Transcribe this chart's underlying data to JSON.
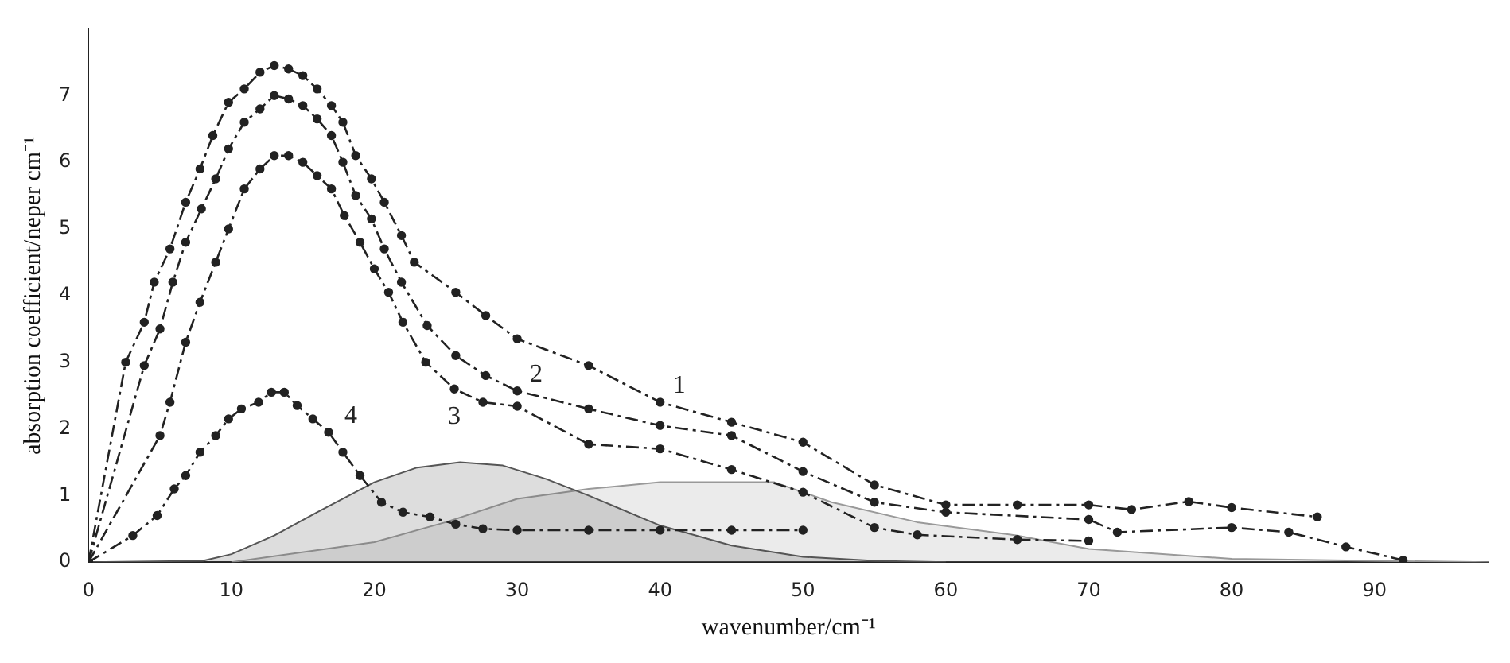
{
  "chart_data": {
    "type": "line",
    "xlabel": "wavenumber/cm⁻¹",
    "ylabel": "absorption coefficient/neper cm⁻¹",
    "xlim": [
      0,
      98
    ],
    "ylim": [
      0,
      8
    ],
    "xticks": [
      0,
      10,
      20,
      30,
      40,
      50,
      60,
      70,
      80,
      90
    ],
    "yticks": [
      0,
      1,
      2,
      3,
      4,
      5,
      6,
      7
    ],
    "grid": false,
    "legend": false,
    "marker": "circle",
    "line_style": "dashed",
    "series": [
      {
        "name": "1",
        "color": "#222222",
        "x": [
          0,
          2.6,
          3.9,
          4.6,
          5.7,
          6.8,
          7.8,
          8.7,
          9.8,
          10.9,
          12,
          13,
          14,
          15,
          16,
          17,
          17.8,
          18.7,
          19.8,
          20.7,
          21.9,
          22.8,
          25.7,
          27.8,
          30,
          35,
          40,
          45,
          50,
          55,
          60,
          65,
          70,
          73,
          77,
          80,
          86
        ],
        "values": [
          0,
          3.0,
          3.6,
          4.2,
          4.7,
          5.4,
          5.9,
          6.4,
          6.9,
          7.1,
          7.35,
          7.45,
          7.4,
          7.3,
          7.1,
          6.85,
          6.6,
          6.1,
          5.75,
          5.4,
          4.9,
          4.5,
          4.05,
          3.7,
          3.35,
          2.95,
          2.4,
          2.1,
          1.8,
          1.16,
          0.86,
          0.86,
          0.86,
          0.79,
          0.91,
          0.82,
          0.68
        ]
      },
      {
        "name": "2",
        "color": "#222222",
        "x": [
          0,
          3.9,
          5,
          5.9,
          6.8,
          7.9,
          8.9,
          9.8,
          10.9,
          12,
          13,
          14,
          15,
          16,
          17,
          17.8,
          18.7,
          19.8,
          20.7,
          21.9,
          23.7,
          25.7,
          27.8,
          30,
          35,
          40,
          45,
          50,
          55,
          60,
          70,
          72,
          80,
          84,
          88,
          92
        ],
        "values": [
          0,
          2.95,
          3.5,
          4.2,
          4.8,
          5.3,
          5.75,
          6.2,
          6.6,
          6.8,
          7.0,
          6.95,
          6.85,
          6.65,
          6.4,
          6.0,
          5.5,
          5.15,
          4.7,
          4.2,
          3.55,
          3.1,
          2.8,
          2.57,
          2.3,
          2.05,
          1.9,
          1.36,
          0.9,
          0.75,
          0.64,
          0.45,
          0.52,
          0.45,
          0.23,
          0.03
        ]
      },
      {
        "name": "3",
        "color": "#222222",
        "x": [
          0,
          5,
          5.7,
          6.8,
          7.8,
          8.9,
          9.8,
          10.9,
          12,
          13,
          14,
          15,
          16,
          17,
          17.9,
          19,
          20,
          21,
          22,
          23.6,
          25.6,
          27.6,
          30,
          35,
          40,
          45,
          50,
          55,
          58,
          65,
          70
        ],
        "values": [
          0,
          1.9,
          2.4,
          3.3,
          3.9,
          4.5,
          5.0,
          5.6,
          5.9,
          6.1,
          6.1,
          6.0,
          5.8,
          5.6,
          5.2,
          4.8,
          4.4,
          4.05,
          3.6,
          3.0,
          2.6,
          2.4,
          2.34,
          1.77,
          1.7,
          1.39,
          1.05,
          0.52,
          0.41,
          0.34,
          0.32
        ]
      },
      {
        "name": "4",
        "color": "#222222",
        "x": [
          0,
          3.1,
          4.8,
          6,
          6.8,
          7.8,
          8.9,
          9.8,
          10.7,
          11.9,
          12.8,
          13.7,
          14.6,
          15.7,
          16.8,
          17.8,
          19,
          20.5,
          22,
          23.9,
          25.7,
          27.6,
          30,
          35,
          40,
          45,
          50
        ],
        "values": [
          0,
          0.4,
          0.7,
          1.1,
          1.3,
          1.65,
          1.9,
          2.15,
          2.3,
          2.4,
          2.55,
          2.55,
          2.35,
          2.15,
          1.95,
          1.65,
          1.3,
          0.9,
          0.75,
          0.68,
          0.57,
          0.5,
          0.48,
          0.48,
          0.48,
          0.48,
          0.48
        ]
      },
      {
        "type": "area",
        "marker": "none",
        "color": "#555555",
        "x": [
          0,
          8,
          10,
          13,
          16,
          20,
          23,
          26,
          29,
          32,
          35,
          40,
          45,
          50,
          55,
          60
        ],
        "values": [
          0,
          0.02,
          0.12,
          0.4,
          0.75,
          1.2,
          1.42,
          1.5,
          1.45,
          1.25,
          1.0,
          0.55,
          0.25,
          0.08,
          0.02,
          0
        ]
      },
      {
        "type": "area",
        "marker": "none",
        "color": "#999999",
        "x": [
          10,
          20,
          25,
          30,
          35,
          40,
          48,
          52,
          58,
          65,
          70,
          80,
          90,
          98
        ],
        "values": [
          0,
          0.3,
          0.6,
          0.95,
          1.1,
          1.2,
          1.2,
          0.9,
          0.6,
          0.4,
          0.2,
          0.05,
          0.02,
          0
        ]
      }
    ]
  }
}
